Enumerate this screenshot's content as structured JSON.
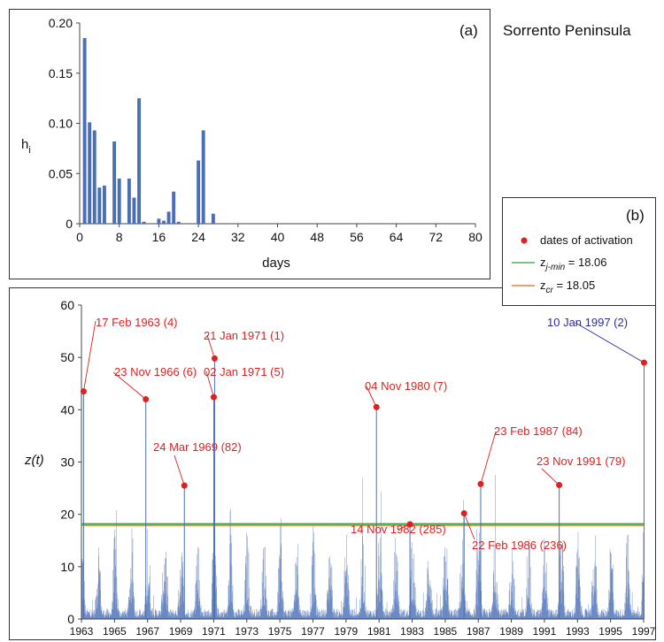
{
  "site_title": "Sorrento Peninsula",
  "colors": {
    "bar": "#4a6fb5",
    "point": "#e02020",
    "zmin_line": "#2e9e3e",
    "zcr_line": "#e06820",
    "axis": "#444444",
    "annot_red": "#e02020",
    "annot_blue": "#2c2ca0"
  },
  "chart_data": [
    {
      "type": "bar",
      "panel_label": "(a)",
      "xlabel": "days",
      "ylabel": "h",
      "ylabel_sub": "i",
      "xlim": [
        0,
        80
      ],
      "ylim": [
        0,
        0.2
      ],
      "xticks": [
        "0",
        "8",
        "16",
        "24",
        "32",
        "40",
        "48",
        "56",
        "64",
        "72",
        "80"
      ],
      "yticks": [
        "0",
        "0.05",
        "0.10",
        "0.15",
        "0.20"
      ],
      "x": [
        1,
        2,
        3,
        4,
        5,
        7,
        8,
        10,
        11,
        12,
        13,
        16,
        17,
        18,
        19,
        20,
        24,
        25,
        27
      ],
      "values": [
        0.185,
        0.101,
        0.093,
        0.036,
        0.038,
        0.082,
        0.045,
        0.045,
        0.026,
        0.125,
        0.002,
        0.005,
        0.003,
        0.012,
        0.032,
        0.002,
        0.063,
        0.093,
        0.01
      ]
    },
    {
      "type": "bar",
      "panel_label": "(b)",
      "ylabel": "z(t)",
      "ylim": [
        0,
        60
      ],
      "xlim": [
        1963,
        1997
      ],
      "yticks": [
        "0",
        "10",
        "20",
        "30",
        "40",
        "50",
        "60"
      ],
      "xticks": [
        "1963",
        "1965",
        "1967",
        "1969",
        "1971",
        "1973",
        "1975",
        "1977",
        "1979",
        "1981",
        "1983",
        "1985",
        "1987",
        "1989",
        "1991",
        "1993",
        "1995",
        "1997"
      ],
      "thresholds": {
        "z_j_min": 18.06,
        "z_cr": 18.05
      },
      "legend": {
        "placement": "top-right",
        "dates_label": "dates of activation",
        "zmin_main": "z",
        "zmin_sub": "j-min",
        "zmin_value": " = 18.06",
        "zcr_main": "z",
        "zcr_sub": "cr",
        "zcr_value": " = 18.05"
      },
      "activations": [
        {
          "label": "17 Feb 1963 (4)",
          "date": "1963-02-17",
          "z": 43.5,
          "color": "red"
        },
        {
          "label": "23 Nov 1966 (6)",
          "date": "1966-11-23",
          "z": 42.0,
          "color": "red"
        },
        {
          "label": "24 Mar 1969 (82)",
          "date": "1969-03-24",
          "z": 25.5,
          "color": "red"
        },
        {
          "label": "21 Jan 1971 (1)",
          "date": "1971-01-21",
          "z": 49.8,
          "color": "red"
        },
        {
          "label": "02 Jan 1971 (5)",
          "date": "1971-01-02",
          "z": 42.4,
          "color": "red"
        },
        {
          "label": "04 Nov 1980 (7)",
          "date": "1980-11-04",
          "z": 40.5,
          "color": "red"
        },
        {
          "label": "14 Nov 1982 (285)",
          "date": "1982-11-14",
          "z": 18.1,
          "color": "red"
        },
        {
          "label": "22 Feb 1986 (236)",
          "date": "1986-02-22",
          "z": 20.2,
          "color": "red"
        },
        {
          "label": "23 Feb 1987 (84)",
          "date": "1987-02-23",
          "z": 25.8,
          "color": "red"
        },
        {
          "label": "23 Nov 1991 (79)",
          "date": "1991-11-23",
          "z": 25.6,
          "color": "red"
        },
        {
          "label": "10 Jan 1997 (2)",
          "date": "1997-01-10",
          "z": 49.0,
          "color": "blue"
        }
      ]
    }
  ]
}
